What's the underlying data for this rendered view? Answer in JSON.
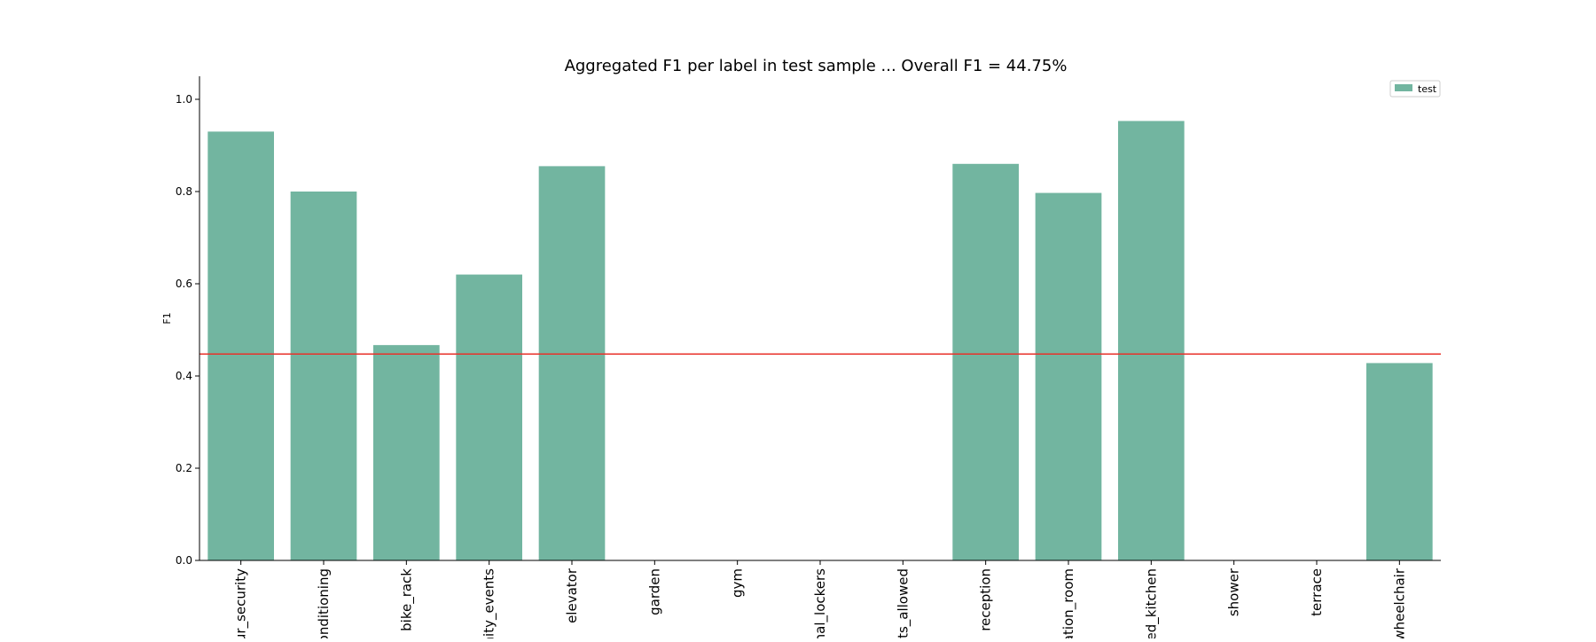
{
  "chart_data": {
    "type": "bar",
    "title": "Aggregated F1 per label in test sample ... Overall F1 = 44.75%",
    "xlabel": "",
    "ylabel": "F1",
    "ylim": [
      0,
      1.05
    ],
    "yticks": [
      "0.0",
      "0.2",
      "0.4",
      "0.6",
      "0.8",
      "1.0"
    ],
    "ytick_values": [
      0,
      0.2,
      0.4,
      0.6,
      0.8,
      1.0
    ],
    "categories": [
      "ur_security",
      "onditioning",
      "bike_rack",
      "nity_events",
      "elevator",
      "garden",
      "gym",
      "nal_lockers",
      "ts_allowed",
      "reception",
      "ation_room",
      "ed_kitchen",
      "shower",
      "terrace",
      "wheelchair"
    ],
    "series": [
      {
        "name": "test",
        "values": [
          0.93,
          0.8,
          0.467,
          0.62,
          0.855,
          0,
          0,
          0,
          0,
          0.86,
          0.797,
          0.953,
          0,
          0,
          0.428
        ]
      }
    ],
    "reference_line": {
      "value": 0.4475
    },
    "legend_position": "top-right",
    "grid": false,
    "colors": {
      "bar": "#72b5a0",
      "reference_line": "#e8312a",
      "axis": "#000000"
    }
  }
}
